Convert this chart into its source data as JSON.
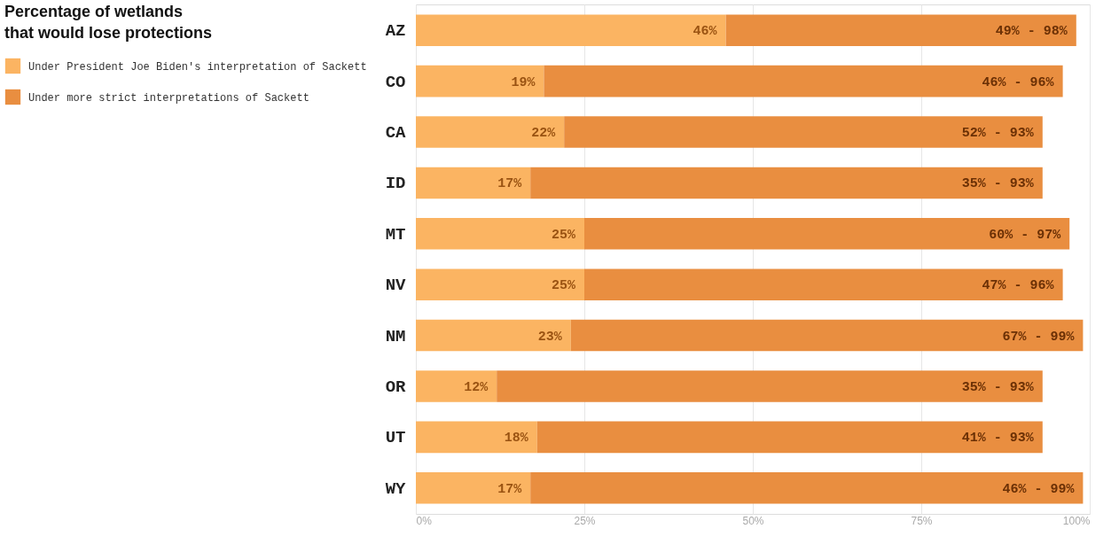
{
  "chart_data": {
    "type": "bar",
    "orientation": "horizontal",
    "stacked": true,
    "legend_title": "Percentage of wetlands that would lose protections",
    "legend": "left",
    "grid": "x",
    "categories": [
      "AZ",
      "CO",
      "CA",
      "ID",
      "MT",
      "NV",
      "NM",
      "OR",
      "UT",
      "WY"
    ],
    "xlim": [
      0,
      100
    ],
    "xticks": [
      {
        "value": 0,
        "label": "0%"
      },
      {
        "value": 25,
        "label": "25%"
      },
      {
        "value": 50,
        "label": "50%"
      },
      {
        "value": 75,
        "label": "75%"
      },
      {
        "value": 100,
        "label": "100%"
      }
    ],
    "series": [
      {
        "name": "Under President Joe Biden's interpretation of Sackett",
        "color": "#fbb462",
        "values": [
          46,
          19,
          22,
          17,
          25,
          25,
          23,
          12,
          18,
          17
        ],
        "value_labels": [
          "46%",
          "19%",
          "22%",
          "17%",
          "25%",
          "25%",
          "23%",
          "12%",
          "18%",
          "17%"
        ]
      },
      {
        "name": "Under more strict interpretations of Sackett",
        "color": "#e98e40",
        "values": [
          52,
          77,
          71,
          76,
          72,
          71,
          76,
          81,
          75,
          82
        ]
      }
    ],
    "annotations": [
      {
        "text": "49% - 98%",
        "x": 98,
        "y": "AZ"
      },
      {
        "text": "46% - 96%",
        "x": 96,
        "y": "CO"
      },
      {
        "text": "52% - 93%",
        "x": 93,
        "y": "CA"
      },
      {
        "text": "35% - 93%",
        "x": 93,
        "y": "ID"
      },
      {
        "text": "60% - 97%",
        "x": 97,
        "y": "MT"
      },
      {
        "text": "47% - 96%",
        "x": 96,
        "y": "NV"
      },
      {
        "text": "67% - 99%",
        "x": 99,
        "y": "NM"
      },
      {
        "text": "35% - 93%",
        "x": 93,
        "y": "OR"
      },
      {
        "text": "41% - 93%",
        "x": 93,
        "y": "UT"
      },
      {
        "text": "46% - 99%",
        "x": 99,
        "y": "WY"
      }
    ]
  }
}
